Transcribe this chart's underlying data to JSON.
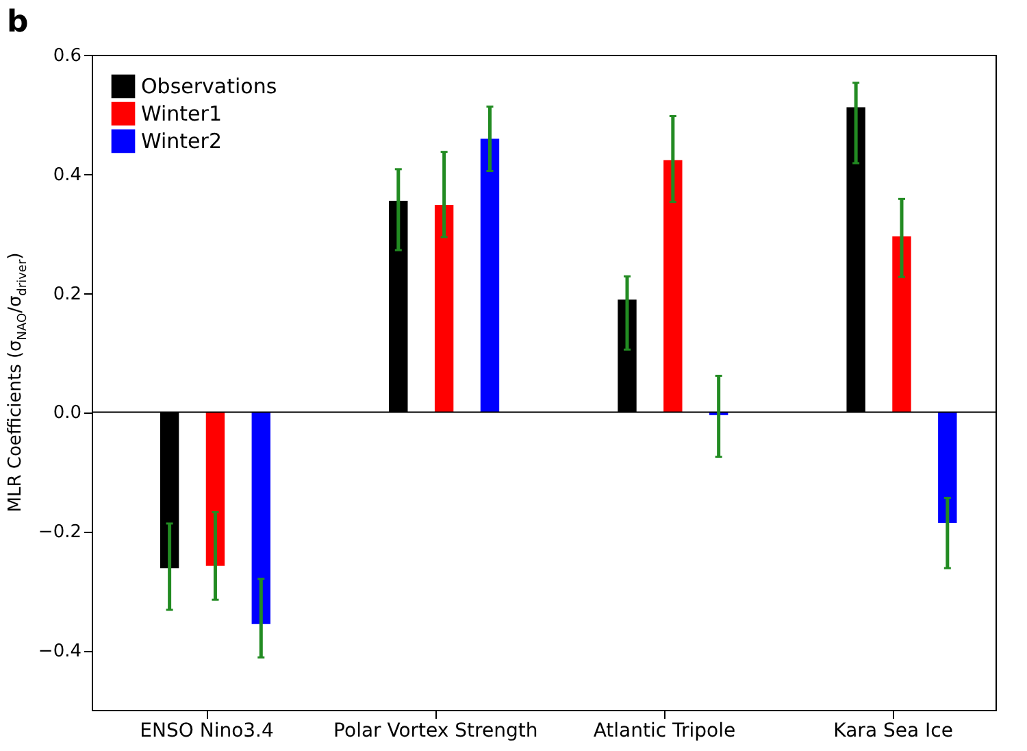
{
  "chart_data": {
    "type": "bar",
    "title": "b",
    "ylabel": "MLR Coefficients (σ$_{NAO}$/σ$_{driver}$)",
    "categories": [
      "ENSO Nino3.4",
      "Polar Vortex Strength",
      "Atlantic Tripole",
      "Kara Sea Ice"
    ],
    "series": [
      {
        "name": "Observations",
        "color": "#000000",
        "values": [
          -0.262,
          0.355,
          0.189,
          0.512
        ],
        "errors": [
          [
            -0.332,
            -0.187
          ],
          [
            0.272,
            0.408
          ],
          [
            0.105,
            0.228
          ],
          [
            0.418,
            0.553
          ]
        ]
      },
      {
        "name": "Winter1",
        "color": "#ff0000",
        "values": [
          -0.258,
          0.348,
          0.423,
          0.295
        ],
        "errors": [
          [
            -0.315,
            -0.168
          ],
          [
            0.294,
            0.437
          ],
          [
            0.353,
            0.497
          ],
          [
            0.227,
            0.358
          ]
        ]
      },
      {
        "name": "Winter2",
        "color": "#0000ff",
        "values": [
          -0.356,
          0.459,
          -0.005,
          -0.186
        ],
        "errors": [
          [
            -0.412,
            -0.28
          ],
          [
            0.405,
            0.513
          ],
          [
            -0.075,
            0.061
          ],
          [
            -0.262,
            -0.144
          ]
        ]
      }
    ],
    "ylim": [
      -0.5,
      0.6
    ],
    "yticks": [
      -0.4,
      -0.2,
      {
        "value": 0,
        "label": "0.0"
      },
      0.2,
      0.4,
      0.6
    ],
    "ref_lines": [
      {
        "axis": "y",
        "value": 0
      }
    ],
    "legend": "top left",
    "grid": false
  }
}
